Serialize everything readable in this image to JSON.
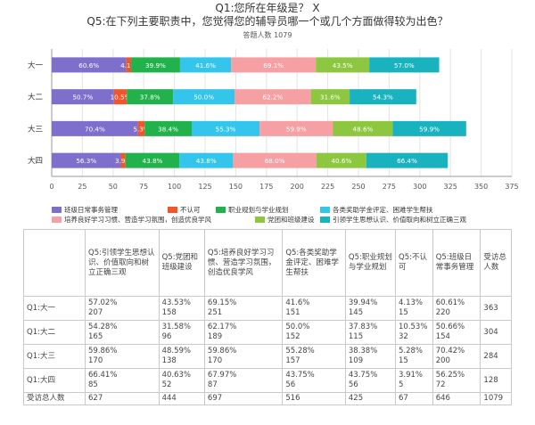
{
  "title_q1": "Q1:您所在年级是？ X",
  "title_q5": "Q5:在下列主要职责中，您觉得您的辅导员哪一个或几个方面做得较为出色？",
  "respondents": "答题人数 1079",
  "colors": {
    "班级日常事务管理": "#7E6FCC",
    "不认可": "#F0562A",
    "职业规划与学业规划": "#21B24B",
    "各类奖助学金评定、困难学生帮扶": "#33C5EB",
    "培养良好学习习惯、营造学习氛围，创造优良学风": "#F7A0A4",
    "党团和班级建设": "#8DC63F",
    "引领学生思想认识、价值取向和树立正确三观": "#19B3BF"
  },
  "chart_data": {
    "type": "bar",
    "orientation": "horizontal",
    "stacked": true,
    "categories": [
      "大一",
      "大二",
      "大三",
      "大四"
    ],
    "series": [
      {
        "name": "班级日常事务管理",
        "values": [
          60.6,
          50.7,
          70.4,
          56.3
        ],
        "labels": [
          "60.6%",
          "50.7%",
          "70.4%",
          "56.3%"
        ]
      },
      {
        "name": "不认可",
        "values": [
          4.1,
          10.5,
          5.3,
          3.9
        ],
        "labels": [
          "4.1%",
          "10.5%",
          "5.3%",
          "3.9%"
        ]
      },
      {
        "name": "职业规划与学业规划",
        "values": [
          39.9,
          37.8,
          38.4,
          43.8
        ],
        "labels": [
          "39.9%",
          "37.8%",
          "38.4%",
          "43.8%"
        ]
      },
      {
        "name": "各类奖助学金评定、困难学生帮扶",
        "values": [
          41.6,
          50.0,
          55.3,
          43.8
        ],
        "labels": [
          "41.6%",
          "50.0%",
          "55.3%",
          "43.8%"
        ]
      },
      {
        "name": "培养良好学习习惯、营造学习氛围，创造优良学风",
        "values": [
          69.1,
          62.2,
          59.9,
          68.0
        ],
        "labels": [
          "69.1%",
          "62.2%",
          "59.9%",
          "68.0%"
        ]
      },
      {
        "name": "党团和班级建设",
        "values": [
          43.5,
          31.6,
          48.6,
          40.6
        ],
        "labels": [
          "43.5%",
          "31.6%",
          "48.6%",
          "40.6%"
        ]
      },
      {
        "name": "引领学生思想认识、价值取向和树立正确三观",
        "values": [
          57.0,
          54.3,
          59.9,
          66.4
        ],
        "labels": [
          "57.0%",
          "54.3%",
          "59.9%",
          "66.4%"
        ]
      }
    ],
    "xlim": [
      0,
      375
    ],
    "xticks": [
      0,
      25,
      50,
      75,
      100,
      125,
      150,
      175,
      200,
      225,
      250,
      275,
      300,
      325,
      350,
      375
    ],
    "grid": true,
    "legend_position": "bottom"
  },
  "table": {
    "headers": [
      "",
      "Q5:引领学生思想认识、价值取向和树立正确三观",
      "Q5:党团和班级建设",
      "Q5:培养良好学习习惯、营造学习氛围，创造优良学风",
      "Q5:各类奖助学金评定、困难学生帮扶",
      "Q5:职业规划与学业规划",
      "Q5:不认可",
      "Q5:班级日常事务管理",
      "受访总人数"
    ],
    "rows": [
      {
        "label": "Q1:大一",
        "cells": [
          [
            "57.02%",
            "207"
          ],
          [
            "43.53%",
            "158"
          ],
          [
            "69.15%",
            "251"
          ],
          [
            "41.6%",
            "151"
          ],
          [
            "39.94%",
            "145"
          ],
          [
            "4.13%",
            "15"
          ],
          [
            "60.61%",
            "220"
          ],
          [
            "363",
            ""
          ]
        ]
      },
      {
        "label": "Q1:大二",
        "cells": [
          [
            "54.28%",
            "165"
          ],
          [
            "31.58%",
            "96"
          ],
          [
            "62.17%",
            "189"
          ],
          [
            "50.0%",
            "152"
          ],
          [
            "37.83%",
            "115"
          ],
          [
            "10.53%",
            "32"
          ],
          [
            "50.66%",
            "154"
          ],
          [
            "304",
            ""
          ]
        ]
      },
      {
        "label": "Q1:大三",
        "cells": [
          [
            "59.86%",
            "170"
          ],
          [
            "48.59%",
            "138"
          ],
          [
            "59.86%",
            "170"
          ],
          [
            "55.28%",
            "157"
          ],
          [
            "38.38%",
            "109"
          ],
          [
            "5.28%",
            "15"
          ],
          [
            "70.42%",
            "200"
          ],
          [
            "284",
            ""
          ]
        ]
      },
      {
        "label": "Q1:大四",
        "cells": [
          [
            "66.41%",
            "85"
          ],
          [
            "40.63%",
            "52"
          ],
          [
            "67.97%",
            "87"
          ],
          [
            "43.75%",
            "56"
          ],
          [
            "43.75%",
            "56"
          ],
          [
            "3.91%",
            "5"
          ],
          [
            "56.25%",
            "72"
          ],
          [
            "128",
            ""
          ]
        ]
      },
      {
        "label": "受访总人数",
        "cells": [
          [
            "627",
            ""
          ],
          [
            "444",
            ""
          ],
          [
            "697",
            ""
          ],
          [
            "516",
            ""
          ],
          [
            "425",
            ""
          ],
          [
            "67",
            ""
          ],
          [
            "646",
            ""
          ],
          [
            "1079",
            ""
          ]
        ]
      }
    ]
  }
}
